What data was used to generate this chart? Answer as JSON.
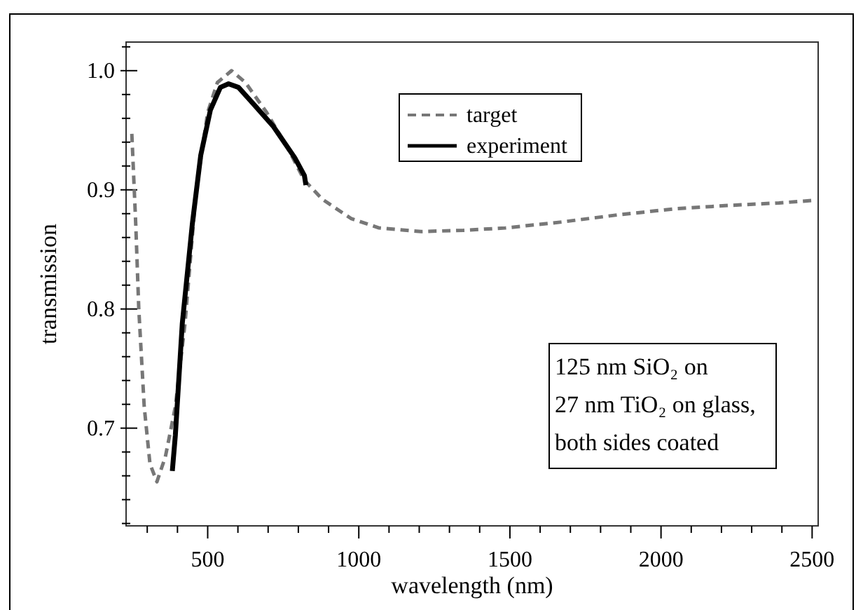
{
  "chart_data": {
    "type": "line",
    "xlabel": "wavelength  (nm)",
    "ylabel": "transmission",
    "xlim": [
      230,
      2520
    ],
    "ylim": [
      0.618,
      1.024
    ],
    "xticks": [
      {
        "value": 300,
        "label": null
      },
      {
        "value": 400,
        "label": null
      },
      500,
      {
        "value": 600,
        "label": null
      },
      {
        "value": 700,
        "label": null
      },
      {
        "value": 800,
        "label": null
      },
      {
        "value": 900,
        "label": null
      },
      1000,
      {
        "value": 1100,
        "label": null
      },
      {
        "value": 1200,
        "label": null
      },
      {
        "value": 1300,
        "label": null
      },
      {
        "value": 1400,
        "label": null
      },
      1500,
      {
        "value": 1600,
        "label": null
      },
      {
        "value": 1700,
        "label": null
      },
      {
        "value": 1800,
        "label": null
      },
      {
        "value": 1900,
        "label": null
      },
      2000,
      {
        "value": 2100,
        "label": null
      },
      {
        "value": 2200,
        "label": null
      },
      {
        "value": 2300,
        "label": null
      },
      {
        "value": 2400,
        "label": null
      },
      2500
    ],
    "yticks": [
      {
        "value": 0.62,
        "label": null
      },
      {
        "value": 0.64,
        "label": null
      },
      {
        "value": 0.66,
        "label": null
      },
      {
        "value": 0.68,
        "label": null
      },
      0.7,
      {
        "value": 0.72,
        "label": null
      },
      {
        "value": 0.74,
        "label": null
      },
      {
        "value": 0.76,
        "label": null
      },
      {
        "value": 0.78,
        "label": null
      },
      0.8,
      {
        "value": 0.82,
        "label": null
      },
      {
        "value": 0.84,
        "label": null
      },
      {
        "value": 0.86,
        "label": null
      },
      {
        "value": 0.88,
        "label": null
      },
      0.9,
      {
        "value": 0.92,
        "label": null
      },
      {
        "value": 0.94,
        "label": null
      },
      {
        "value": 0.96,
        "label": null
      },
      {
        "value": 0.98,
        "label": null
      },
      {
        "value": 1,
        "label": "1.0"
      },
      {
        "value": 1.02,
        "label": null
      }
    ],
    "grid": false,
    "legend": "top right",
    "annotations": [
      "125 nm SiO₂ on\n27 nm TiO₂ on glass,\nboth sides coated"
    ],
    "series": [
      {
        "name": "target",
        "color": "#777777",
        "line_style": "dashed",
        "x": [
          249,
          262,
          272,
          290,
          309,
          332,
          360,
          393,
          425,
          462,
          500,
          532,
          579,
          625,
          695,
          765,
          820,
          880,
          974,
          1067,
          1206,
          1346,
          1485,
          1671,
          1857,
          2043,
          2230,
          2390,
          2497
        ],
        "values": [
          0.947,
          0.871,
          0.8,
          0.718,
          0.67,
          0.655,
          0.676,
          0.718,
          0.788,
          0.9,
          0.965,
          0.99,
          1.0,
          0.99,
          0.965,
          0.935,
          0.908,
          0.892,
          0.876,
          0.868,
          0.865,
          0.866,
          0.868,
          0.873,
          0.879,
          0.884,
          0.887,
          0.889,
          0.891
        ]
      },
      {
        "name": "experiment",
        "color": "#000000",
        "line_style": "solid",
        "x": [
          383,
          393,
          416,
          449,
          477,
          509,
          542,
          569,
          602,
          648,
          718,
          788,
          820,
          825
        ],
        "values": [
          0.664,
          0.694,
          0.788,
          0.871,
          0.929,
          0.967,
          0.986,
          0.989,
          0.986,
          0.973,
          0.953,
          0.927,
          0.912,
          0.904
        ]
      }
    ]
  }
}
